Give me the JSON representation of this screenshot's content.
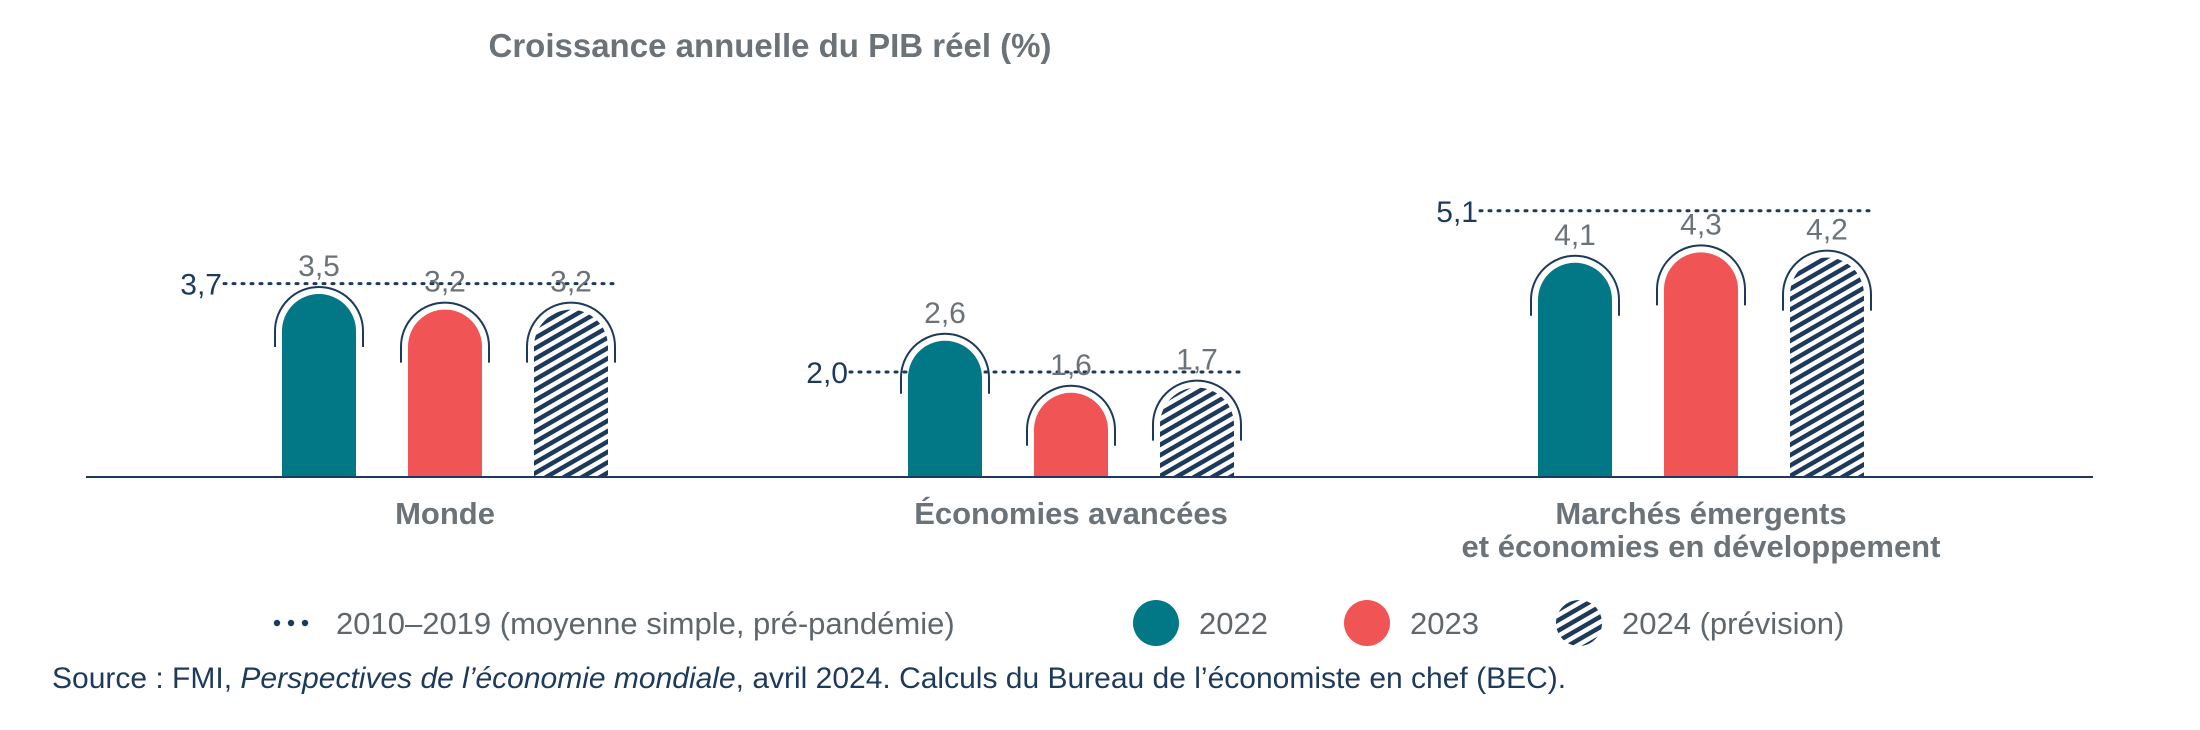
{
  "chart_data": {
    "type": "bar",
    "title": "Croissance annuelle du PIB réel (%)",
    "categories": [
      [
        "Monde"
      ],
      [
        "Économies avancées"
      ],
      [
        "Marchés émergents",
        "et économies en développement"
      ]
    ],
    "series": [
      {
        "name": "2022",
        "color": "#027786",
        "pattern": "solid",
        "values": [
          3.5,
          2.6,
          4.1
        ],
        "labels": [
          "3,5",
          "2,6",
          "4,1"
        ]
      },
      {
        "name": "2023",
        "color": "#f05455",
        "pattern": "solid",
        "values": [
          3.2,
          1.6,
          4.3
        ],
        "labels": [
          "3,2",
          "1,6",
          "4,3"
        ]
      },
      {
        "name": "2024 (prévision)",
        "color": "#1d3a5c",
        "pattern": "hatched",
        "values": [
          3.2,
          1.7,
          4.2
        ],
        "labels": [
          "3,2",
          "1,7",
          "4,2"
        ]
      }
    ],
    "reference": {
      "name": "2010–2019 (moyenne simple, pré-pandémie)",
      "style": "dotted",
      "color": "#1d3a5c",
      "values": [
        3.7,
        2.0,
        5.1
      ],
      "labels": [
        "3,7",
        "2,0",
        "5,1"
      ]
    },
    "ylim": [
      0,
      6
    ],
    "legend_position": "bottom"
  },
  "source": {
    "prefix": "Source : FMI, ",
    "publication": "Perspectives de l’économie mondiale",
    "suffix": ", avril 2024. Calculs du Bureau de l’économiste en chef (BEC)."
  }
}
